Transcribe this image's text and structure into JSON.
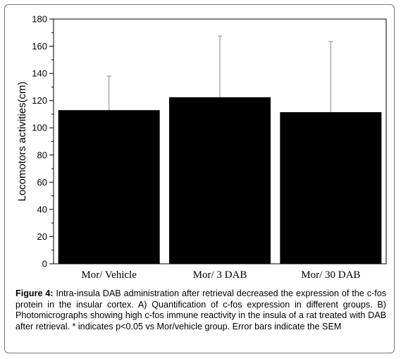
{
  "chart_data": {
    "type": "bar",
    "categories": [
      "Mor/ Vehicle",
      "Mor/ 3 DAB",
      "Mor/ 30 DAB"
    ],
    "values": [
      113,
      122.5,
      111.5
    ],
    "error_upper": [
      138,
      167.5,
      163.5
    ],
    "ylabel": "Locomotors activities(cm)",
    "xlabel": "",
    "ylim": [
      0,
      180
    ],
    "yticks": [
      "0",
      "20",
      "40",
      "60",
      "80",
      "100",
      "120",
      "140",
      "160",
      "180"
    ],
    "bar_color": "#000000",
    "grid": false
  },
  "caption": {
    "label": "Figure 4:",
    "text": " Intra-insula DAB administration after retrieval decreased the expression of the c-fos protein in the insular cortex. A) Quantification of c-fos expression in different groups. B) Photomicrographs showing high c-fos immune reactivity in the insula of a rat treated with DAB after retrieval. * indicates p<0.05 vs Mor/vehicle group. Error bars indicate the SEM"
  }
}
